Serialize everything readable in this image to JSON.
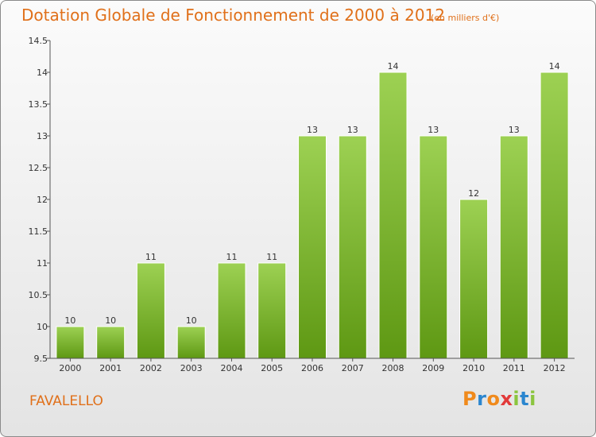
{
  "header": {
    "title": "Dotation Globale de Fonctionnement de 2000 à 2012",
    "unit": "(en milliers d'€)"
  },
  "footer": {
    "commune": "FAVALELLO",
    "logo": "Proxiti"
  },
  "colors": {
    "accent": "#e0701a",
    "bar_top": "#9dd153",
    "bar_bottom": "#5e9813"
  },
  "chart_data": {
    "type": "bar",
    "title": "Dotation Globale de Fonctionnement de 2000 à 2012",
    "subtitle": "(en milliers d'€)",
    "xlabel": "",
    "ylabel": "",
    "categories": [
      "2000",
      "2001",
      "2002",
      "2003",
      "2004",
      "2005",
      "2006",
      "2007",
      "2008",
      "2009",
      "2010",
      "2011",
      "2012"
    ],
    "values": [
      10,
      10,
      11,
      10,
      11,
      11,
      13,
      13,
      14,
      13,
      12,
      13,
      14
    ],
    "data_labels": [
      "10",
      "10",
      "11",
      "10",
      "11",
      "11",
      "13",
      "13",
      "14",
      "13",
      "12",
      "13",
      "14"
    ],
    "ylim": [
      9.5,
      14.5
    ],
    "yticks": [
      9.5,
      10,
      10.5,
      11,
      11.5,
      12,
      12.5,
      13,
      13.5,
      14,
      14.5
    ],
    "ytick_labels": [
      "9.5",
      "10",
      "10.5",
      "11",
      "11.5",
      "12",
      "12.5",
      "13",
      "13.5",
      "14",
      "14.5"
    ],
    "grid": false,
    "legend": "none"
  }
}
